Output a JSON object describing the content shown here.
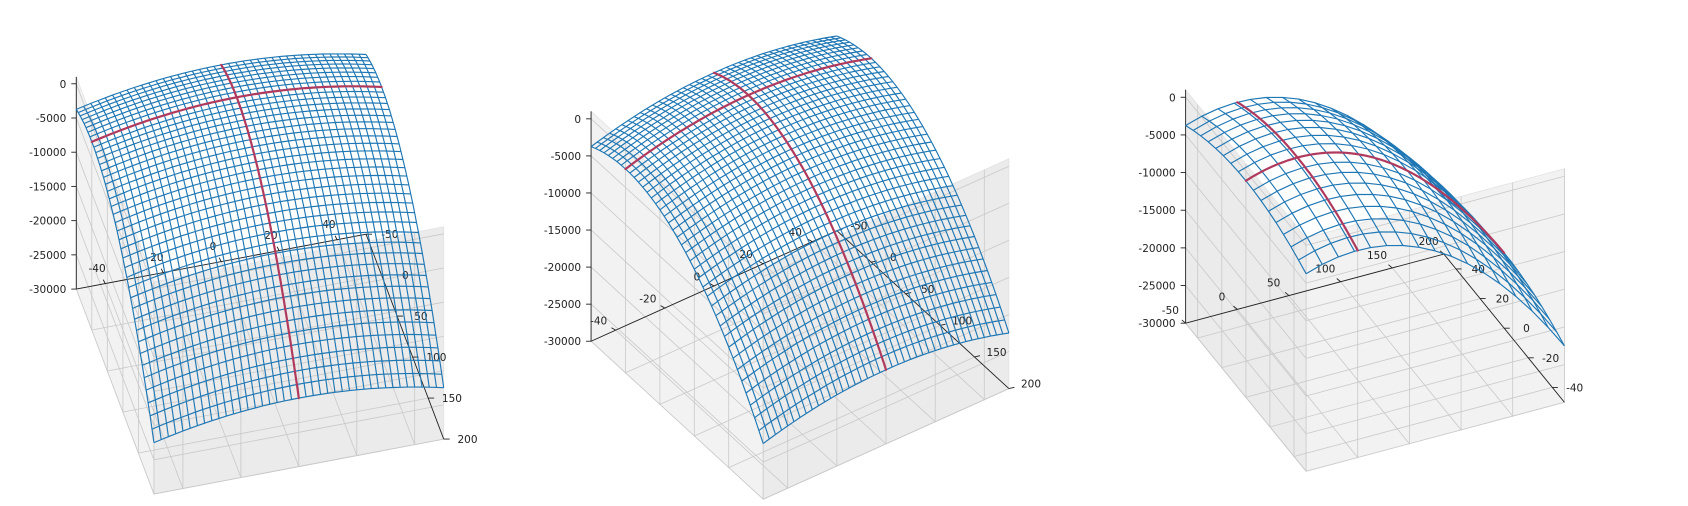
{
  "colors": {
    "surface": "#1f77b4",
    "curve": "#b03a5e",
    "pane_left": "#f2f2f2",
    "pane_right": "#ebebeb",
    "pane_floor": "#f6f6f6"
  },
  "chart_data": [
    {
      "type": "surface3d",
      "style": "wireframe",
      "view": {
        "elev": 45,
        "azim": 15
      },
      "function": "z = -x^2 - 0.5*y^2 (wireframe 41 x 41)",
      "xlim": [
        -50,
        50
      ],
      "ylim": [
        -50,
        200
      ],
      "zlim": [
        -30000,
        1000
      ],
      "x_ticks": [
        "-40",
        "-20",
        "0",
        "20",
        "40"
      ],
      "y_ticks": [
        "-50",
        "0",
        "50",
        "100",
        "150",
        "200"
      ],
      "z_ticks": [
        "0",
        "-5000",
        "-10000",
        "-15000",
        "-20000",
        "-25000",
        "-30000"
      ],
      "highlight_curves": [
        {
          "along": "x",
          "at_y": 0
        },
        {
          "along": "y",
          "at_x": 0
        }
      ]
    },
    {
      "type": "surface3d",
      "style": "wireframe",
      "view": {
        "elev": 40,
        "azim": 35
      },
      "function": "z = -x^2 - 0.5*y^2 (wireframe 41 x 41)",
      "xlim": [
        -50,
        50
      ],
      "ylim": [
        -50,
        200
      ],
      "zlim": [
        -30000,
        1000
      ],
      "x_ticks": [
        "-40",
        "-20",
        "0",
        "20",
        "40"
      ],
      "y_ticks": [
        "-50",
        "0",
        "50",
        "100",
        "150",
        "200"
      ],
      "z_ticks": [
        "0",
        "-5000",
        "-10000",
        "-15000",
        "-20000",
        "-25000",
        "-30000"
      ],
      "highlight_curves": [
        {
          "along": "x",
          "at_y": 0
        },
        {
          "along": "y",
          "at_x": 0
        }
      ]
    },
    {
      "type": "surface3d",
      "style": "wireframe",
      "view": {
        "elev": 35,
        "azim": 115
      },
      "function": "z = -x^2 - 0.5*y^2 (wireframe 17 x 17)",
      "xlim": [
        -50,
        50
      ],
      "ylim": [
        -50,
        200
      ],
      "zlim": [
        -30000,
        1000
      ],
      "x_ticks": [
        "-40",
        "-20",
        "0",
        "20",
        "40"
      ],
      "y_ticks": [
        "-50",
        "0",
        "50",
        "100",
        "150",
        "200"
      ],
      "z_ticks": [
        "0",
        "-5000",
        "-10000",
        "-15000",
        "-20000",
        "-25000",
        "-30000"
      ],
      "highlight_curves": [
        {
          "along": "x",
          "at_y": 0
        },
        {
          "along": "y",
          "at_x": 0
        }
      ]
    }
  ]
}
